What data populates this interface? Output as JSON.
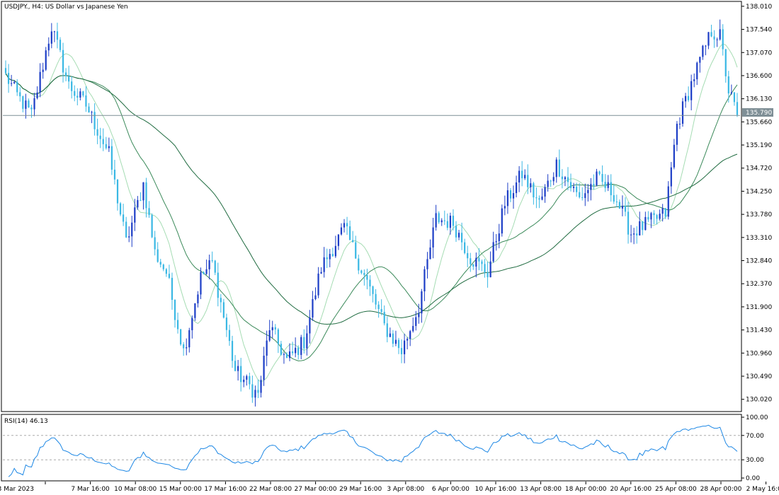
{
  "chart_data": {
    "type": "candlestick",
    "title": "USDJPY., H4:  US Dollar vs Japanese Yen",
    "current_price": "135.790",
    "price_axis": {
      "ylim": [
        129.8,
        138.08
      ],
      "ticks": [
        "138.010",
        "137.540",
        "137.070",
        "136.600",
        "136.130",
        "135.660",
        "135.190",
        "134.720",
        "134.250",
        "133.780",
        "133.310",
        "132.840",
        "132.370",
        "131.900",
        "131.430",
        "130.960",
        "130.490",
        "130.020"
      ]
    },
    "time_axis": {
      "labels": [
        "3 Mar 2023",
        "7 Mar 16:00",
        "10 Mar 08:00",
        "15 Mar 00:00",
        "17 Mar 16:00",
        "22 Mar 08:00",
        "27 Mar 00:00",
        "29 Mar 16:00",
        "3 Apr 08:00",
        "6 Apr 00:00",
        "10 Apr 16:00",
        "13 Apr 08:00",
        "18 Apr 00:00",
        "20 Apr 16:00",
        "25 Apr 08:00",
        "28 Apr 00:00",
        "2 May 16:00"
      ]
    },
    "anchors": [
      [
        0,
        136.6
      ],
      [
        4,
        136.2
      ],
      [
        9,
        135.8
      ],
      [
        16,
        137.6
      ],
      [
        22,
        136.4
      ],
      [
        28,
        136.0
      ],
      [
        36,
        135.0
      ],
      [
        42,
        133.2
      ],
      [
        48,
        134.4
      ],
      [
        52,
        133.0
      ],
      [
        56,
        132.6
      ],
      [
        62,
        131.0
      ],
      [
        68,
        132.5
      ],
      [
        72,
        132.8
      ],
      [
        80,
        130.6
      ],
      [
        88,
        130.1
      ],
      [
        92,
        131.5
      ],
      [
        98,
        130.8
      ],
      [
        104,
        131.2
      ],
      [
        110,
        132.7
      ],
      [
        118,
        133.5
      ],
      [
        126,
        132.4
      ],
      [
        132,
        131.5
      ],
      [
        138,
        131.0
      ],
      [
        144,
        131.9
      ],
      [
        150,
        133.7
      ],
      [
        156,
        133.6
      ],
      [
        162,
        132.9
      ],
      [
        168,
        132.6
      ],
      [
        174,
        134.0
      ],
      [
        180,
        134.6
      ],
      [
        186,
        134.0
      ],
      [
        192,
        134.8
      ],
      [
        200,
        134.1
      ],
      [
        206,
        134.5
      ],
      [
        212,
        134.2
      ],
      [
        218,
        133.4
      ],
      [
        224,
        133.6
      ],
      [
        230,
        133.8
      ],
      [
        234,
        135.6
      ],
      [
        240,
        136.6
      ],
      [
        246,
        137.5
      ],
      [
        249,
        137.4
      ],
      [
        252,
        136.3
      ],
      [
        255,
        135.8
      ]
    ],
    "moving_averages": [
      {
        "period": 10,
        "color": "#a5dcb3"
      },
      {
        "period": 25,
        "color": "#3b8a5a"
      },
      {
        "period": 60,
        "color": "#1f6b40"
      }
    ],
    "up_color": "#1e3fc7",
    "down_color": "#3bb8e4",
    "line_color": "#1e88e5"
  },
  "rsi": {
    "label": "RSI(14) 46.13",
    "ticks": [
      "100.00",
      "70.00",
      "30.00",
      "0.00"
    ],
    "levels": [
      70,
      30
    ]
  }
}
